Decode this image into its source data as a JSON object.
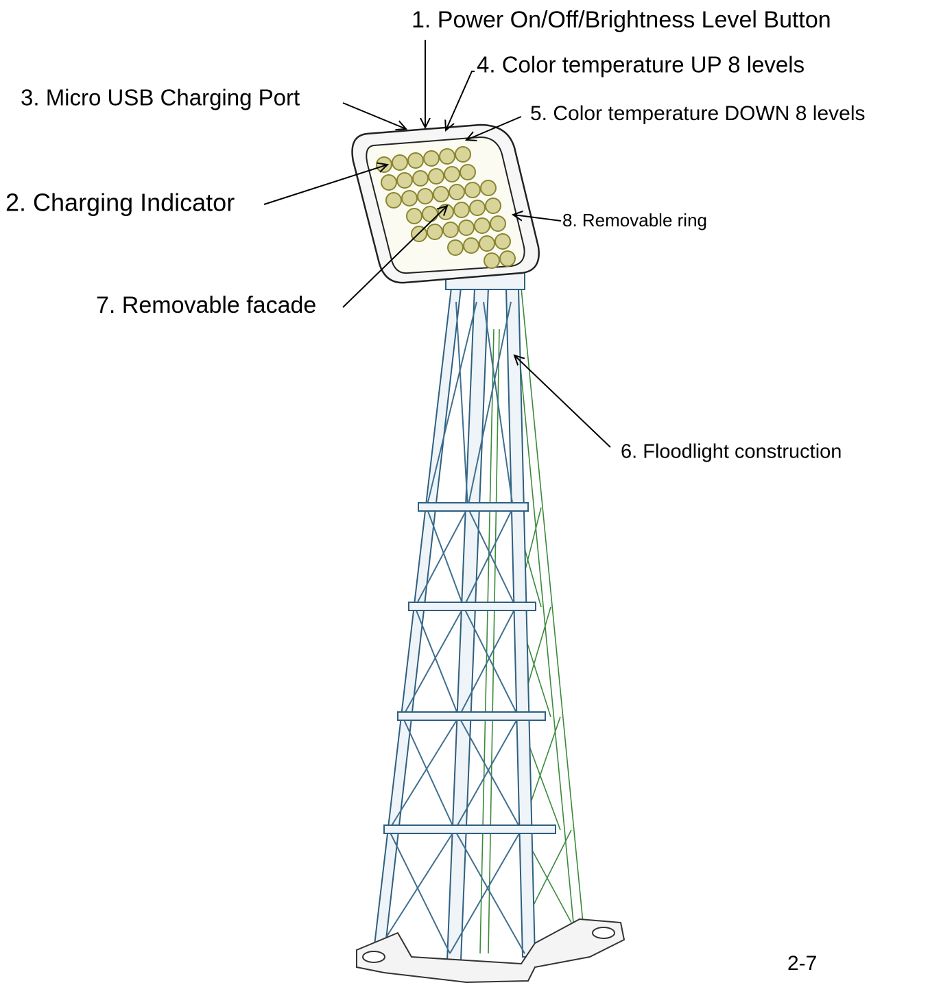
{
  "labels": [
    "1. Power On/Off/Brightness Level Button",
    "2. Charging Indicator",
    "3. Micro USB Charging Port",
    "4. Color temperature UP 8 levels",
    "5. Color temperature DOWN 8 levels",
    "6. Floodlight construction",
    "7. Removable facade",
    "8. Removable ring"
  ],
  "page_number": "2-7"
}
